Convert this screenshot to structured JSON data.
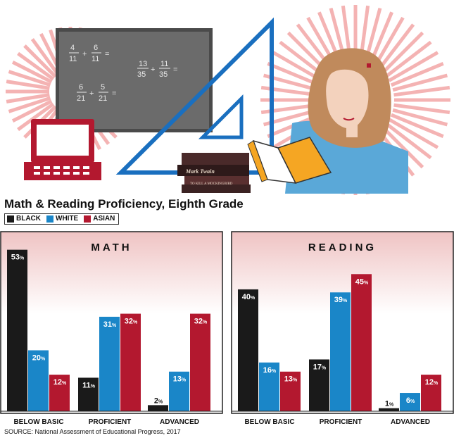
{
  "page": {
    "title": "Math & Reading Proficiency, Eighth Grade",
    "source": "SOURCE: National Assessment of Educational Progress, 2017"
  },
  "legend": [
    {
      "label": "BLACK",
      "color": "#1a1a1a"
    },
    {
      "label": "WHITE",
      "color": "#1a86c8"
    },
    {
      "label": "ASIAN",
      "color": "#b3182f"
    }
  ],
  "illustration": {
    "chalkboard": {
      "expressions": [
        {
          "numerator_a": "4",
          "denominator_a": "11",
          "numerator_b": "6",
          "denominator_b": "11"
        },
        {
          "numerator_a": "13",
          "denominator_a": "35",
          "numerator_b": "11",
          "denominator_b": "35"
        },
        {
          "numerator_a": "6",
          "denominator_a": "21",
          "numerator_b": "5",
          "denominator_b": "21"
        }
      ],
      "plus": "+",
      "equals": "="
    },
    "book_spines": [
      "Mark Twain",
      "TO KILL A MOCKINGBIRD"
    ]
  },
  "chart_data": [
    {
      "type": "bar",
      "title": "MATH",
      "categories": [
        "BELOW BASIC",
        "PROFICIENT",
        "ADVANCED"
      ],
      "series": [
        {
          "name": "BLACK",
          "values": [
            53,
            11,
            2
          ]
        },
        {
          "name": "WHITE",
          "values": [
            20,
            31,
            13
          ]
        },
        {
          "name": "ASIAN",
          "values": [
            12,
            32,
            32
          ]
        }
      ],
      "unit": "%",
      "ylim": [
        0,
        55
      ],
      "grid": false
    },
    {
      "type": "bar",
      "title": "READING",
      "categories": [
        "BELOW BASIC",
        "PROFICIENT",
        "ADVANCED"
      ],
      "series": [
        {
          "name": "BLACK",
          "values": [
            40,
            17,
            1
          ]
        },
        {
          "name": "WHITE",
          "values": [
            16,
            39,
            6
          ]
        },
        {
          "name": "ASIAN",
          "values": [
            13,
            45,
            12
          ]
        }
      ],
      "unit": "%",
      "ylim": [
        0,
        55
      ],
      "grid": false
    }
  ]
}
